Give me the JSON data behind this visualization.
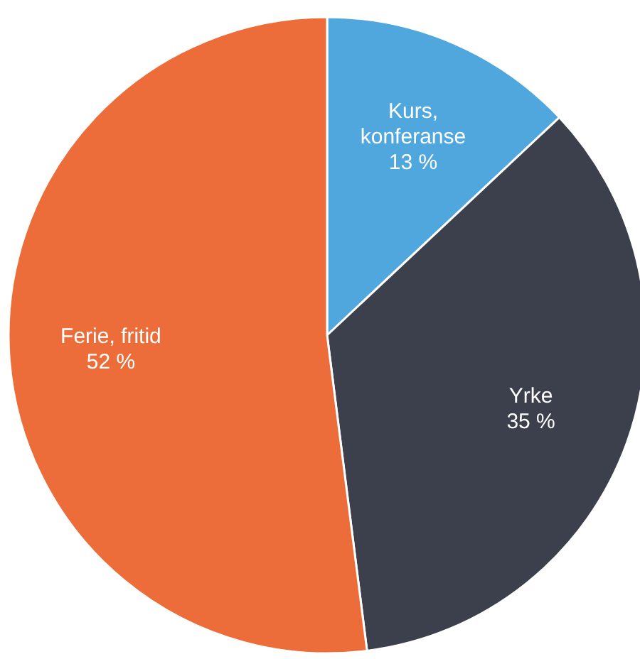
{
  "chart_data": {
    "type": "pie",
    "categories": [
      "Kurs, konferanse",
      "Yrke",
      "Ferie, fritid"
    ],
    "values": [
      13,
      35,
      52
    ],
    "colors": [
      "#4fa7de",
      "#3c3f4c",
      "#ec6d39"
    ],
    "value_labels": [
      "13 %",
      "35 %",
      "52 %"
    ],
    "legend": false
  }
}
